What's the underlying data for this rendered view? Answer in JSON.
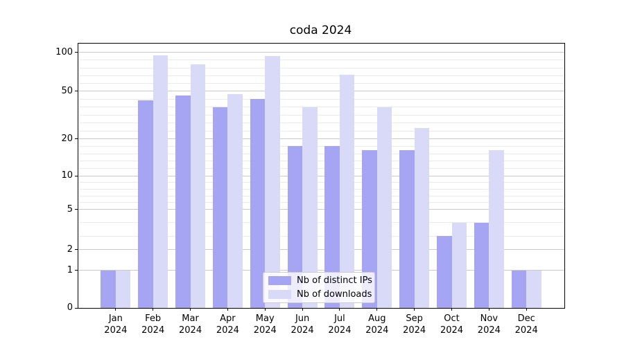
{
  "title": "coda 2024",
  "chart_data": {
    "type": "bar",
    "title": "coda 2024",
    "categories": [
      "Jan 2024",
      "Feb 2024",
      "Mar 2024",
      "Apr 2024",
      "May 2024",
      "Jun 2024",
      "Jul 2024",
      "Aug 2024",
      "Sep 2024",
      "Oct 2024",
      "Nov 2024",
      "Dec 2024"
    ],
    "series": [
      {
        "name": "Nb of distinct IPs",
        "color": "#a5a5f3",
        "values": [
          1,
          44,
          47,
          40,
          45,
          18,
          18,
          17,
          17,
          3,
          4,
          1
        ]
      },
      {
        "name": "Nb of downloads",
        "color": "#d9d9f8",
        "values": [
          1,
          96,
          85,
          48,
          95,
          40,
          71,
          40,
          27,
          4,
          17,
          1
        ]
      }
    ],
    "xlabel": "",
    "ylabel": "",
    "yscale": "quasi-log (log-like with linear 0-1 segment)",
    "y_major_ticks": [
      0,
      1,
      2,
      5,
      10,
      20,
      50,
      100
    ],
    "y_minor_ticks": [
      3,
      4,
      6,
      7,
      8,
      9,
      12,
      14,
      16,
      18,
      25,
      30,
      35,
      40,
      45,
      60,
      70,
      80,
      90
    ],
    "ylim": [
      0,
      110
    ],
    "grid": "horizontal, major and minor",
    "legend_position": "inside lower-center"
  },
  "colors": {
    "distinct_ips_bar": "#a5a5f3",
    "downloads_bar": "#d9d9f8",
    "major_grid": "#c9c9c9",
    "minor_grid": "#eaeaea",
    "axis": "#000000",
    "background": "#ffffff"
  }
}
